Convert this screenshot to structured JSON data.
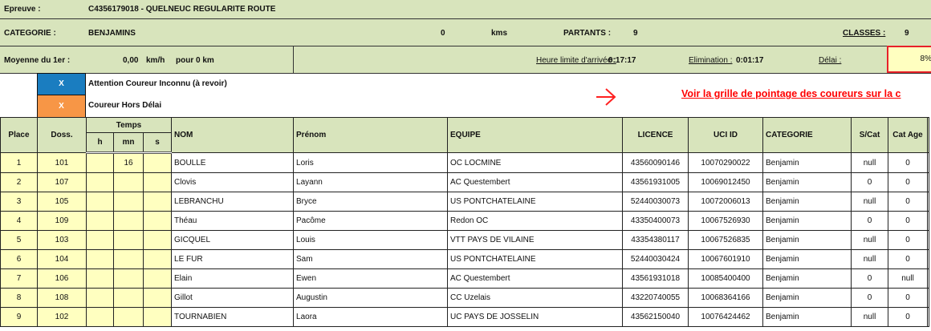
{
  "header": {
    "epreuve_label": "Epreuve :",
    "epreuve_value": "C4356179018 - QUELNEUC REGULARITE ROUTE",
    "categorie_label": "CATEGORIE :",
    "categorie_value": "BENJAMINS",
    "kms_value": "0",
    "kms_label": "kms",
    "partants_label": "PARTANTS :",
    "partants_value": "9",
    "classes_label": "CLASSES :",
    "classes_value": "9",
    "moyenne_label": "Moyenne du 1er :",
    "moyenne_value": "0,00",
    "moyenne_unit": "km/h",
    "pour_label": "pour 0 km",
    "heure_label": "Heure limite d'arrivée :",
    "heure_value": "0:17:17",
    "elim_label": "Elimination :",
    "elim_value": "0:01:17",
    "delai_label": "Délai :",
    "delai_value": "8%"
  },
  "legend": {
    "unknown_mark": "X",
    "unknown_label": "Attention Coureur Inconnu (à revoir)",
    "unknown_color": "#1a7dc0",
    "late_mark": "X",
    "late_label": "Coureur Hors Délai",
    "late_color": "#f79646"
  },
  "link": {
    "text": "Voir la grille de pointage des coureurs sur la c",
    "color": "#ff0000"
  },
  "columns": {
    "place": "Place",
    "doss": "Doss.",
    "temps": "Temps",
    "h": "h",
    "mn": "mn",
    "s": "s",
    "nom": "NOM",
    "prenom": "Prénom",
    "equipe": "EQUIPE",
    "licence": "LICENCE",
    "uci": "UCI ID",
    "categorie": "CATEGORIE",
    "scat": "S/Cat",
    "catage": "Cat Age"
  },
  "rows": [
    {
      "place": "1",
      "doss": "101",
      "h": "",
      "mn": "16",
      "s": "",
      "nom": "BOULLE",
      "prenom": "Loris",
      "equipe": "OC LOCMINE",
      "licence": "43560090146",
      "uci": "10070290022",
      "categorie": "Benjamin",
      "scat": "null",
      "catage": "0"
    },
    {
      "place": "2",
      "doss": "107",
      "h": "",
      "mn": "",
      "s": "",
      "nom": "Clovis",
      "prenom": "Layann",
      "equipe": "AC Questembert",
      "licence": "43561931005",
      "uci": "10069012450",
      "categorie": "Benjamin",
      "scat": "0",
      "catage": "0"
    },
    {
      "place": "3",
      "doss": "105",
      "h": "",
      "mn": "",
      "s": "",
      "nom": "LEBRANCHU",
      "prenom": "Bryce",
      "equipe": "US PONTCHATELAINE",
      "licence": "52440030073",
      "uci": "10072006013",
      "categorie": "Benjamin",
      "scat": "null",
      "catage": "0"
    },
    {
      "place": "4",
      "doss": "109",
      "h": "",
      "mn": "",
      "s": "",
      "nom": "Théau",
      "prenom": "Pacôme",
      "equipe": "Redon OC",
      "licence": "43350400073",
      "uci": "10067526930",
      "categorie": "Benjamin",
      "scat": "0",
      "catage": "0"
    },
    {
      "place": "5",
      "doss": "103",
      "h": "",
      "mn": "",
      "s": "",
      "nom": "GICQUEL",
      "prenom": "Louis",
      "equipe": "VTT PAYS DE VILAINE",
      "licence": "43354380117",
      "uci": "10067526835",
      "categorie": "Benjamin",
      "scat": "null",
      "catage": "0"
    },
    {
      "place": "6",
      "doss": "104",
      "h": "",
      "mn": "",
      "s": "",
      "nom": "LE FUR",
      "prenom": "Sam",
      "equipe": "US PONTCHATELAINE",
      "licence": "52440030424",
      "uci": "10067601910",
      "categorie": "Benjamin",
      "scat": "null",
      "catage": "0"
    },
    {
      "place": "7",
      "doss": "106",
      "h": "",
      "mn": "",
      "s": "",
      "nom": "Elain",
      "prenom": "Ewen",
      "equipe": "AC Questembert",
      "licence": "43561931018",
      "uci": "10085400400",
      "categorie": "Benjamin",
      "scat": "0",
      "catage": "null"
    },
    {
      "place": "8",
      "doss": "108",
      "h": "",
      "mn": "",
      "s": "",
      "nom": "Gillot",
      "prenom": "Augustin",
      "equipe": "CC Uzelais",
      "licence": "43220740055",
      "uci": "10068364166",
      "categorie": "Benjamin",
      "scat": "0",
      "catage": "0"
    },
    {
      "place": "9",
      "doss": "102",
      "h": "",
      "mn": "",
      "s": "",
      "nom": "TOURNABIEN",
      "prenom": "Laora",
      "equipe": "UC PAYS DE JOSSELIN",
      "licence": "43562150040",
      "uci": "10076424462",
      "categorie": "Benjamin",
      "scat": "null",
      "catage": "0"
    }
  ]
}
